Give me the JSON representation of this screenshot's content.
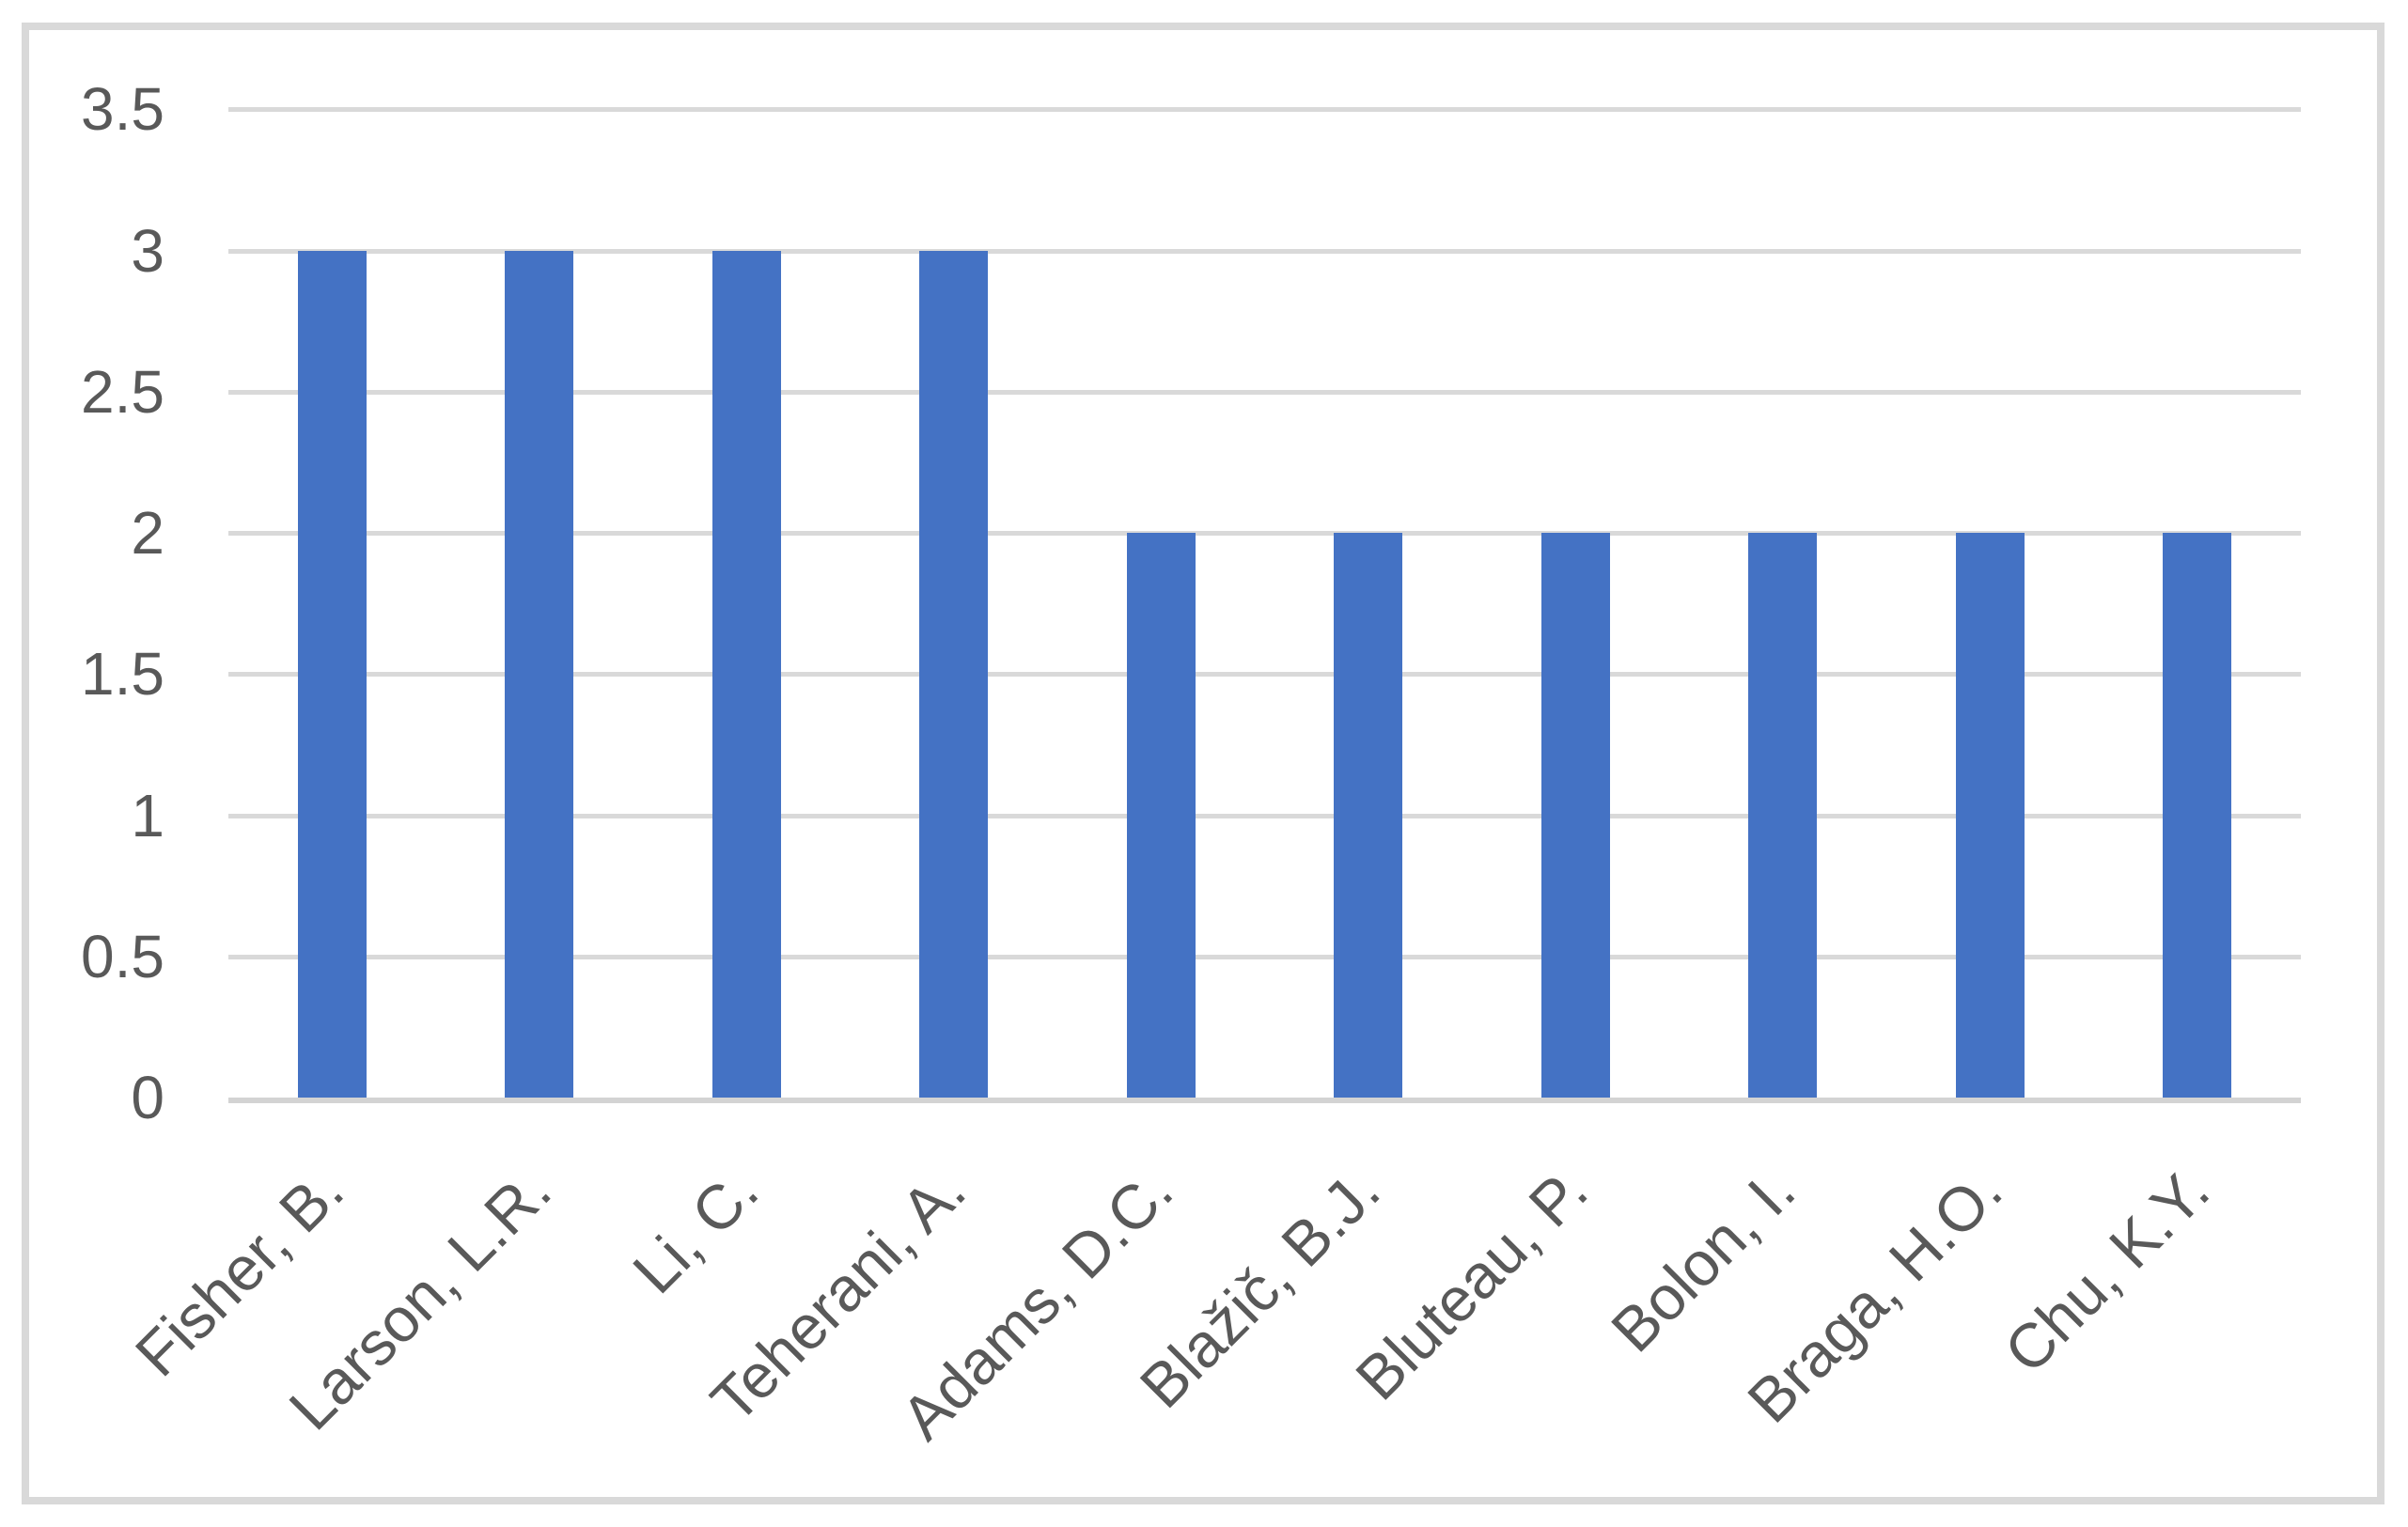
{
  "chart_data": {
    "type": "bar",
    "categories": [
      "Fisher, B.",
      "Larson, L.R.",
      "Li, C.",
      "Teherani, A.",
      "Adams, D.C.",
      "Blažič, B.J.",
      "Bluteau, P.",
      "Bolon, I.",
      "Braga, H.O.",
      "Chu, K.Y."
    ],
    "values": [
      3,
      3,
      3,
      3,
      2,
      2,
      2,
      2,
      2,
      2
    ],
    "series_name": "",
    "title": "",
    "xlabel": "",
    "ylabel": "",
    "ylim": [
      0,
      3.5
    ],
    "ytick_step": 0.5,
    "ytick_labels": [
      "0",
      "0.5",
      "1",
      "1.5",
      "2",
      "2.5",
      "3",
      "3.5"
    ],
    "grid": true,
    "legend": false,
    "x_label_rotation_deg": -45,
    "colors": {
      "bar": "#4472C4",
      "gridline": "#D9D9D9",
      "axis_line": "#D3D3D3",
      "tick_text": "#595959",
      "frame_border": "#D9D9D9",
      "background": "#FFFFFF"
    }
  }
}
